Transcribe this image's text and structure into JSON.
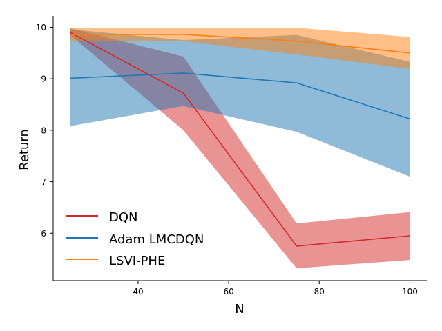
{
  "chart_data": {
    "type": "line",
    "xlabel": "N",
    "ylabel": "Return",
    "xlim": [
      21.25,
      103.75
    ],
    "ylim": [
      5.08,
      10.22
    ],
    "xticks": [
      40,
      60,
      80,
      100
    ],
    "yticks": [
      6,
      7,
      8,
      9,
      10
    ],
    "grid": false,
    "legend_position": "lower-left",
    "series": [
      {
        "name": "DQN",
        "color": "#d62728",
        "x": [
          25,
          50,
          75,
          100
        ],
        "y": [
          9.9,
          8.72,
          5.75,
          5.95
        ],
        "lower": [
          9.85,
          8.0,
          5.32,
          5.48
        ],
        "upper": [
          9.98,
          9.43,
          6.19,
          6.41
        ]
      },
      {
        "name": "Adam LMCDQN",
        "color": "#1f77b4",
        "x": [
          25,
          50,
          75,
          100
        ],
        "y": [
          9.01,
          9.11,
          8.92,
          8.22
        ],
        "lower": [
          8.08,
          8.47,
          7.97,
          7.1
        ],
        "upper": [
          9.96,
          9.75,
          9.85,
          9.33
        ]
      },
      {
        "name": "LSVI-PHE",
        "color": "#ff7f0e",
        "x": [
          25,
          50,
          75,
          100
        ],
        "y": [
          9.86,
          9.86,
          9.73,
          9.5
        ],
        "lower": [
          9.73,
          9.73,
          9.47,
          9.19
        ],
        "upper": [
          9.99,
          9.99,
          9.99,
          9.81
        ]
      }
    ]
  }
}
